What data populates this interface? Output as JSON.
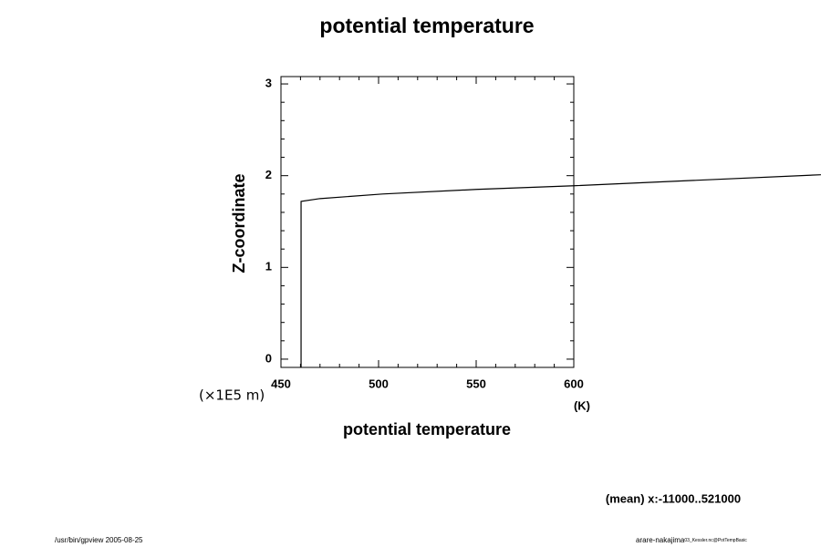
{
  "chart_data": {
    "type": "line",
    "title": "potential temperature",
    "xlabel": "potential temperature",
    "ylabel": "Z-coordinate",
    "x_unit": "(K)",
    "y_unit": "(×1E5 m)",
    "annotation": "(mean) x:-11000..521000",
    "footer_left": "/usr/bin/gpview 2005-08-25",
    "footer_right": "arare-nakajima",
    "footer_right_small": "03_Kessler.nc@PotTempBasic",
    "xlim": [
      450,
      600
    ],
    "ylim": [
      -0.09,
      3.08
    ],
    "xticks": [
      450,
      500,
      550,
      600
    ],
    "yticks": [
      0,
      1,
      2,
      3
    ],
    "xminorticks": [
      460,
      470,
      480,
      490,
      510,
      520,
      530,
      540,
      560,
      570,
      580,
      590
    ],
    "yminorticks": [
      0.2,
      0.4,
      0.6,
      0.8,
      1.2,
      1.4,
      1.6,
      1.8,
      2.2,
      2.4,
      2.6,
      2.8
    ],
    "series": [
      {
        "color": "#000000",
        "x": [
          460.3,
          460.3,
          470,
          502,
          550,
          600,
          726.6
        ],
        "values": [
          -0.09,
          1.72,
          1.75,
          1.8,
          1.85,
          1.89,
          2.01
        ]
      }
    ]
  }
}
